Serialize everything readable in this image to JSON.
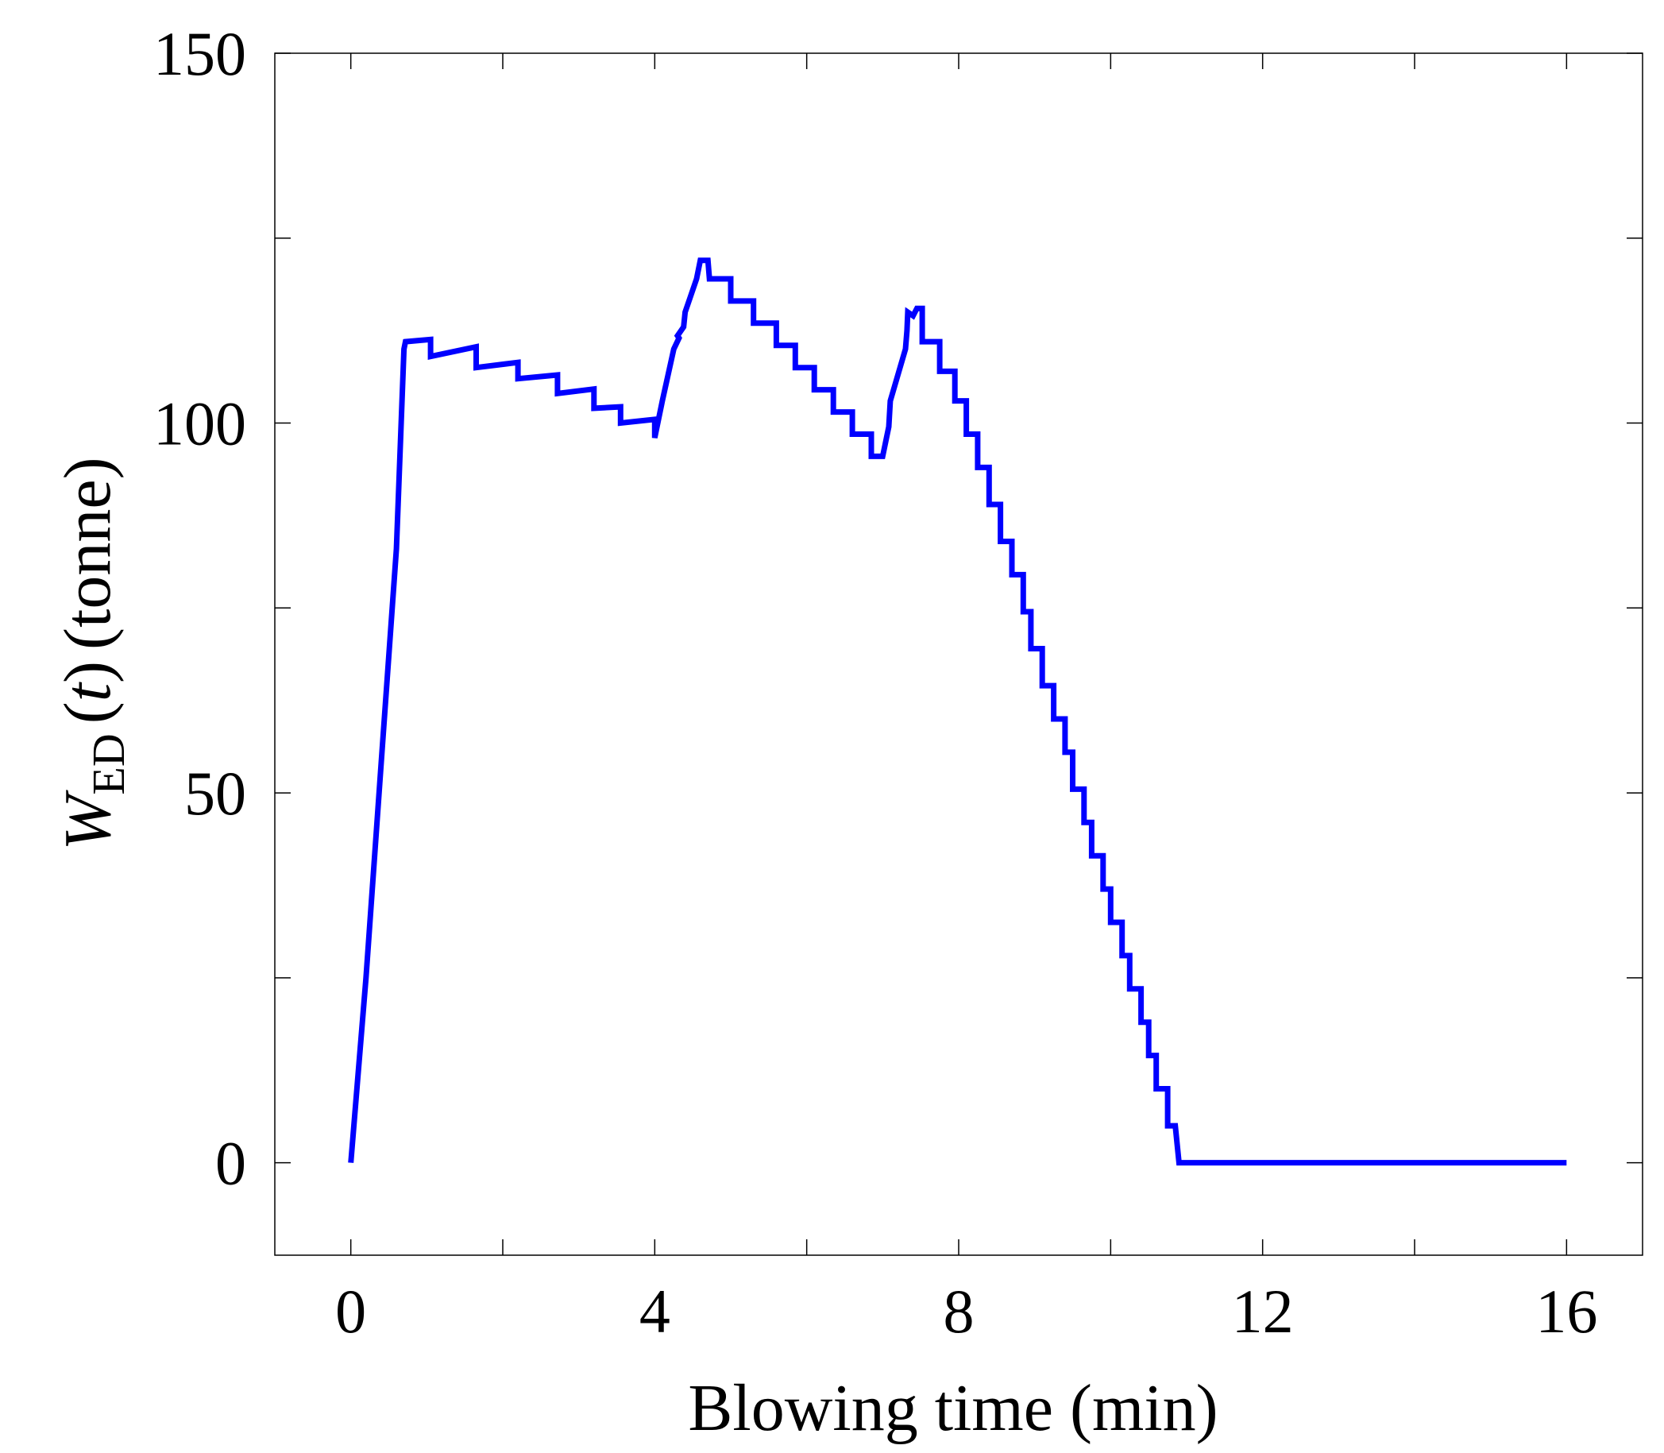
{
  "chart_data": {
    "type": "line",
    "title": "",
    "xlabel": "Blowing time (min)",
    "ylabel": {
      "symbol": "W",
      "subscript": "ED",
      "arg_open": "(",
      "arg": "t",
      "arg_close": ")",
      "unit": "(tonne)"
    },
    "xlim": [
      -1,
      17
    ],
    "ylim": [
      -12.5,
      150
    ],
    "xticks": [
      0,
      4,
      8,
      12,
      16
    ],
    "xticks_minor": [
      2,
      6,
      10,
      14
    ],
    "yticks": [
      0,
      50,
      100,
      150
    ],
    "yticks_minor": [
      25,
      75,
      125
    ],
    "grid": false,
    "legend": "none",
    "series": [
      {
        "color": "#0000ff",
        "x": [
          0,
          0.2,
          0.4,
          0.6,
          0.7,
          0.72,
          1.05,
          1.05,
          1.65,
          1.65,
          2.2,
          2.2,
          2.72,
          2.72,
          3.2,
          3.2,
          3.55,
          3.55,
          4.0,
          4.0,
          4.1,
          4.25,
          4.32,
          4.3,
          4.38,
          4.4,
          4.55,
          4.6,
          4.7,
          4.72,
          5.0,
          5.0,
          5.3,
          5.3,
          5.6,
          5.6,
          5.85,
          5.85,
          6.1,
          6.1,
          6.35,
          6.35,
          6.6,
          6.6,
          6.85,
          6.85,
          7.0,
          7.05,
          7.08,
          7.1,
          7.3,
          7.32,
          7.33,
          7.4,
          7.45,
          7.52,
          7.52,
          7.75,
          7.75,
          7.95,
          7.95,
          8.1,
          8.1,
          8.25,
          8.25,
          8.4,
          8.4,
          8.55,
          8.55,
          8.7,
          8.7,
          8.85,
          8.85,
          8.95,
          8.95,
          9.1,
          9.1,
          9.25,
          9.25,
          9.4,
          9.4,
          9.5,
          9.5,
          9.65,
          9.65,
          9.75,
          9.75,
          9.9,
          9.9,
          10.0,
          10.0,
          10.15,
          10.15,
          10.25,
          10.25,
          10.4,
          10.4,
          10.5,
          10.5,
          10.6,
          10.6,
          10.75,
          10.75,
          10.85,
          10.9,
          16.0
        ],
        "y": [
          0,
          25,
          54,
          83,
          110,
          111,
          111.3,
          109,
          110.3,
          107.5,
          108.2,
          106,
          106.5,
          104,
          104.6,
          102,
          102.2,
          100,
          100.5,
          98,
          103,
          110,
          111.5,
          111.8,
          113,
          115,
          119.5,
          122,
          122,
          119.5,
          119.5,
          116.5,
          116.5,
          113.5,
          113.5,
          110.5,
          110.5,
          107.5,
          107.5,
          104.5,
          104.5,
          101.5,
          101.5,
          98.5,
          98.5,
          95.5,
          95.5,
          98,
          99.5,
          103,
          110,
          112.5,
          115,
          114.5,
          115.5,
          115.5,
          111,
          111,
          107,
          107,
          103,
          103,
          98.5,
          98.5,
          94,
          94,
          89,
          89,
          84,
          84,
          79.5,
          79.5,
          74.5,
          74.5,
          69.5,
          69.5,
          64.5,
          64.5,
          60,
          60,
          55.5,
          55.5,
          50.5,
          50.5,
          46,
          46,
          41.5,
          41.5,
          37,
          37,
          32.5,
          32.5,
          28,
          28,
          23.5,
          23.5,
          19,
          19,
          14.5,
          14.5,
          10,
          10,
          5,
          5,
          0,
          0
        ]
      }
    ]
  }
}
